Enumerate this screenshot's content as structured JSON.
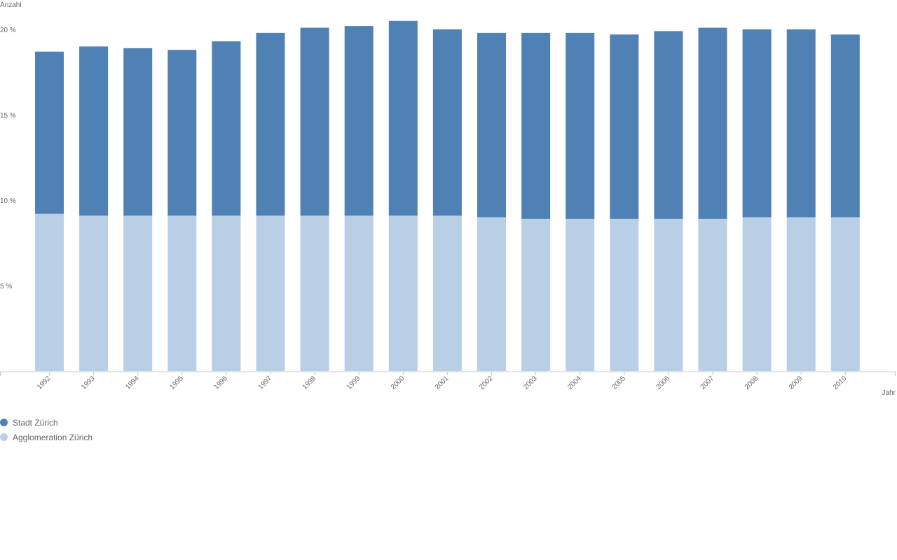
{
  "chart_data": {
    "type": "bar",
    "stacked": true,
    "ylabel": "Anzahl",
    "xlabel": "Jahr",
    "ylim": [
      0,
      20
    ],
    "yticks": [
      "5 %",
      "10 %",
      "15 %",
      "20 %"
    ],
    "ytick_values": [
      5,
      10,
      15,
      20
    ],
    "grid": false,
    "legend_position": "bottom-left",
    "categories": [
      "1992",
      "1993",
      "1994",
      "1995",
      "1996",
      "1997",
      "1998",
      "1999",
      "2000",
      "2001",
      "2002",
      "2003",
      "2004",
      "2005",
      "2006",
      "2007",
      "2008",
      "2009",
      "2010"
    ],
    "series": [
      {
        "name": "Agglomeration Zürich",
        "color": "#b9cfe6",
        "values": [
          9.2,
          9.1,
          9.1,
          9.1,
          9.1,
          9.1,
          9.1,
          9.1,
          9.1,
          9.1,
          9.0,
          8.9,
          8.9,
          8.9,
          8.9,
          8.9,
          9.0,
          9.0,
          9.0
        ]
      },
      {
        "name": "Stadt Zürich",
        "color": "#4f81b4",
        "values": [
          9.5,
          9.9,
          9.8,
          9.7,
          10.2,
          10.7,
          11.0,
          11.1,
          11.4,
          10.9,
          10.8,
          10.9,
          10.9,
          10.8,
          11.0,
          11.2,
          11.0,
          11.0,
          10.7
        ]
      }
    ]
  },
  "legend": {
    "items": [
      {
        "label": "Stadt Zürich",
        "color": "#4f81b4"
      },
      {
        "label": "Agglomeration Zürich",
        "color": "#b9cfe6"
      }
    ]
  }
}
